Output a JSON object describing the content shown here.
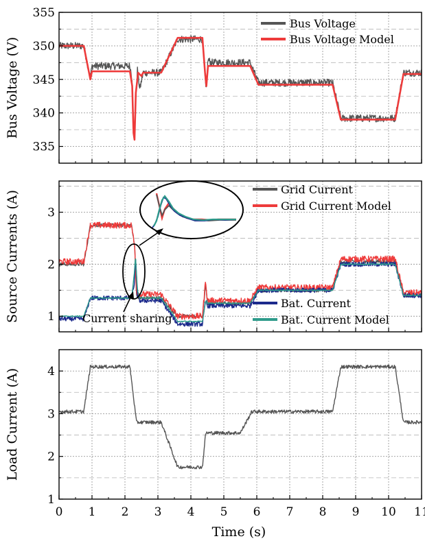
{
  "chart_data": [
    {
      "type": "line",
      "xlabel": "",
      "ylabel": "Bus Voltage (V)",
      "xlim": [
        0,
        11
      ],
      "ylim": [
        332.5,
        355
      ],
      "yticks": [
        335,
        340,
        345,
        350,
        355
      ],
      "xticks": [
        0,
        1,
        2,
        3,
        4,
        5,
        6,
        7,
        8,
        9,
        10,
        11
      ],
      "grid": true,
      "legend_position": "top-right",
      "series": [
        {
          "name": "Bus Voltage",
          "color": "#555555",
          "noise": 0.55,
          "points": [
            [
              0,
              350
            ],
            [
              0.75,
              350
            ],
            [
              0.95,
              345.2
            ],
            [
              1.0,
              347
            ],
            [
              2.15,
              347
            ],
            [
              2.22,
              345
            ],
            [
              2.25,
              338
            ],
            [
              2.28,
              335.5
            ],
            [
              2.32,
              342
            ],
            [
              2.38,
              346.5
            ],
            [
              2.45,
              343.5
            ],
            [
              2.55,
              346
            ],
            [
              3.1,
              346
            ],
            [
              3.6,
              351
            ],
            [
              4.35,
              351
            ],
            [
              4.42,
              346
            ],
            [
              4.46,
              343
            ],
            [
              4.52,
              348
            ],
            [
              4.6,
              347.5
            ],
            [
              5.8,
              347.5
            ],
            [
              6.05,
              344.5
            ],
            [
              8.3,
              344.5
            ],
            [
              8.55,
              339.2
            ],
            [
              10.2,
              339.2
            ],
            [
              10.45,
              346
            ],
            [
              11,
              346
            ]
          ]
        },
        {
          "name": "Bus Voltage Model",
          "color": "#ee3b3b",
          "noise": 0,
          "points": [
            [
              0,
              350
            ],
            [
              0.75,
              350
            ],
            [
              0.95,
              345
            ],
            [
              1.0,
              346.2
            ],
            [
              2.15,
              346.2
            ],
            [
              2.22,
              344
            ],
            [
              2.26,
              337
            ],
            [
              2.29,
              336
            ],
            [
              2.33,
              343
            ],
            [
              2.4,
              346
            ],
            [
              2.5,
              345.5
            ],
            [
              2.55,
              346
            ],
            [
              3.1,
              346
            ],
            [
              3.6,
              351.2
            ],
            [
              4.35,
              351.2
            ],
            [
              4.43,
              346
            ],
            [
              4.47,
              344
            ],
            [
              4.52,
              347
            ],
            [
              4.6,
              347
            ],
            [
              5.8,
              347
            ],
            [
              6.05,
              344.2
            ],
            [
              8.3,
              344.2
            ],
            [
              8.55,
              339
            ],
            [
              10.2,
              339
            ],
            [
              10.45,
              345.8
            ],
            [
              11,
              345.8
            ]
          ]
        }
      ]
    },
    {
      "type": "line",
      "xlabel": "",
      "ylabel": "Source Currents (A)",
      "xlim": [
        0,
        11
      ],
      "ylim": [
        0.7,
        3.6
      ],
      "yticks": [
        1,
        2,
        3
      ],
      "xticks": [
        0,
        1,
        2,
        3,
        4,
        5,
        6,
        7,
        8,
        9,
        10,
        11
      ],
      "grid": true,
      "legend_position": "top-right / bottom-right",
      "annotation": "Current sharing",
      "series": [
        {
          "name": "Grid Current",
          "color": "#555555",
          "noise": 0.035,
          "points": [
            [
              0,
              2.0
            ],
            [
              0.75,
              2.0
            ],
            [
              0.95,
              2.75
            ],
            [
              2.2,
              2.75
            ],
            [
              2.3,
              2.3
            ],
            [
              2.35,
              1.4
            ],
            [
              2.45,
              1.35
            ],
            [
              3.1,
              1.35
            ],
            [
              3.6,
              1.0
            ],
            [
              4.35,
              1.0
            ],
            [
              4.45,
              1.6
            ],
            [
              4.5,
              1.25
            ],
            [
              5.8,
              1.25
            ],
            [
              6.05,
              1.5
            ],
            [
              8.3,
              1.5
            ],
            [
              8.55,
              2.05
            ],
            [
              10.2,
              2.05
            ],
            [
              10.45,
              1.4
            ],
            [
              11,
              1.4
            ]
          ]
        },
        {
          "name": "Grid Current Model",
          "color": "#ee3b3b",
          "noise": 0.06,
          "points": [
            [
              0,
              2.05
            ],
            [
              0.75,
              2.05
            ],
            [
              0.95,
              2.75
            ],
            [
              2.2,
              2.75
            ],
            [
              2.3,
              2.3
            ],
            [
              2.35,
              1.45
            ],
            [
              2.45,
              1.42
            ],
            [
              3.1,
              1.42
            ],
            [
              3.6,
              1.0
            ],
            [
              4.35,
              1.0
            ],
            [
              4.45,
              1.7
            ],
            [
              4.5,
              1.3
            ],
            [
              5.8,
              1.3
            ],
            [
              6.05,
              1.55
            ],
            [
              8.3,
              1.55
            ],
            [
              8.55,
              2.1
            ],
            [
              10.2,
              2.1
            ],
            [
              10.45,
              1.45
            ],
            [
              11,
              1.45
            ]
          ]
        },
        {
          "name": "Bat. Current",
          "color": "#1c2a8c",
          "noise": 0.045,
          "points": [
            [
              0,
              0.95
            ],
            [
              0.75,
              0.95
            ],
            [
              0.95,
              1.35
            ],
            [
              2.2,
              1.35
            ],
            [
              2.28,
              1.6
            ],
            [
              2.32,
              2.1
            ],
            [
              2.38,
              1.4
            ],
            [
              2.45,
              1.3
            ],
            [
              3.1,
              1.3
            ],
            [
              3.6,
              0.85
            ],
            [
              4.35,
              0.85
            ],
            [
              4.45,
              1.3
            ],
            [
              4.5,
              1.2
            ],
            [
              5.8,
              1.2
            ],
            [
              6.05,
              1.5
            ],
            [
              8.3,
              1.5
            ],
            [
              8.55,
              2.0
            ],
            [
              10.2,
              2.0
            ],
            [
              10.45,
              1.4
            ],
            [
              11,
              1.4
            ]
          ]
        },
        {
          "name": "Bat. Current Model",
          "color": "#2e9b8b",
          "noise": 0.01,
          "points": [
            [
              0,
              1.0
            ],
            [
              0.75,
              1.0
            ],
            [
              0.95,
              1.35
            ],
            [
              2.2,
              1.35
            ],
            [
              2.28,
              1.8
            ],
            [
              2.32,
              2.15
            ],
            [
              2.38,
              1.5
            ],
            [
              2.45,
              1.35
            ],
            [
              3.1,
              1.35
            ],
            [
              3.6,
              0.9
            ],
            [
              4.35,
              0.9
            ],
            [
              4.45,
              1.3
            ],
            [
              4.5,
              1.25
            ],
            [
              5.8,
              1.25
            ],
            [
              6.05,
              1.5
            ],
            [
              8.3,
              1.5
            ],
            [
              8.55,
              2.0
            ],
            [
              10.2,
              2.0
            ],
            [
              10.45,
              1.4
            ],
            [
              11,
              1.4
            ]
          ]
        }
      ]
    },
    {
      "type": "line",
      "xlabel": "Time (s)",
      "ylabel": "Load Current (A)",
      "xlim": [
        0,
        11
      ],
      "ylim": [
        1,
        4.5
      ],
      "yticks": [
        1,
        2,
        3,
        4
      ],
      "xticks": [
        0,
        1,
        2,
        3,
        4,
        5,
        6,
        7,
        8,
        9,
        10,
        11
      ],
      "grid": true,
      "series": [
        {
          "name": "",
          "color": "#555555",
          "noise": 0.04,
          "points": [
            [
              0,
              3.05
            ],
            [
              0.75,
              3.05
            ],
            [
              0.95,
              4.1
            ],
            [
              2.15,
              4.1
            ],
            [
              2.35,
              2.8
            ],
            [
              3.1,
              2.8
            ],
            [
              3.6,
              1.75
            ],
            [
              4.35,
              1.75
            ],
            [
              4.45,
              2.55
            ],
            [
              5.5,
              2.55
            ],
            [
              5.85,
              3.05
            ],
            [
              8.3,
              3.05
            ],
            [
              8.55,
              4.1
            ],
            [
              10.2,
              4.1
            ],
            [
              10.45,
              2.8
            ],
            [
              11,
              2.8
            ]
          ]
        }
      ]
    }
  ]
}
